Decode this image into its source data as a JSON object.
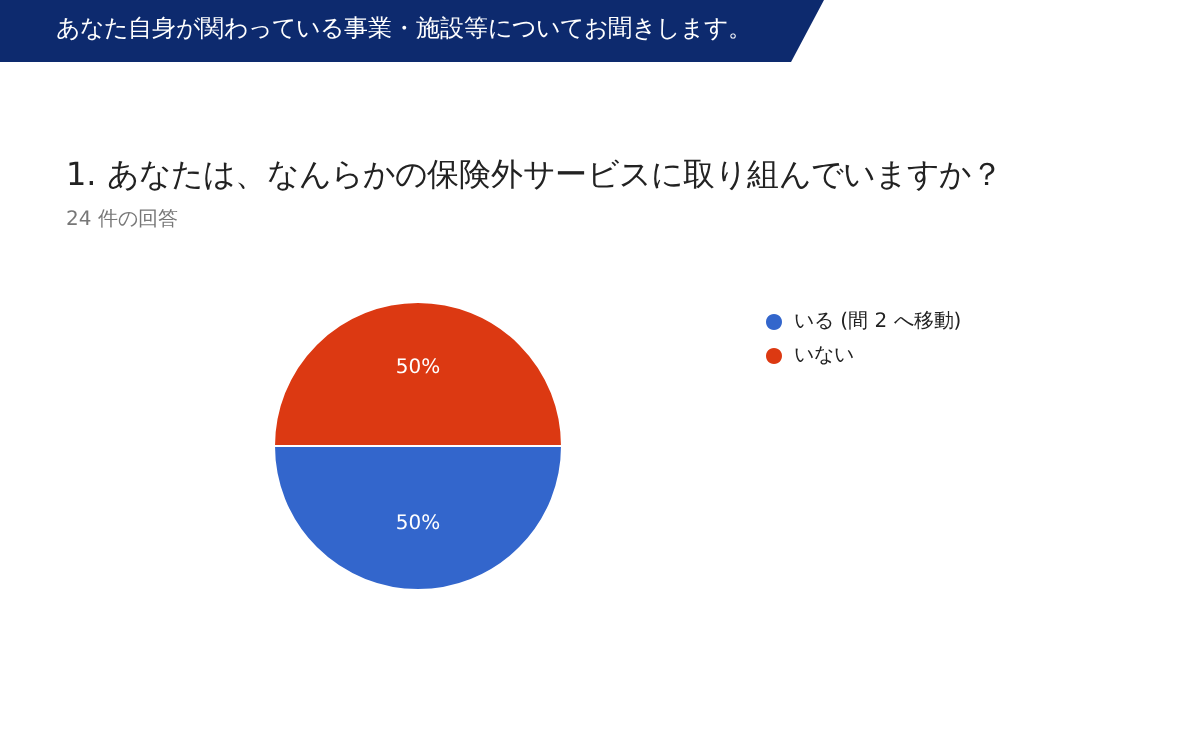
{
  "chart_data": {
    "type": "pie",
    "title": "1. あなたは、なんらかの保険外サービスに取り組んでいますか？",
    "subtitle": "24 件の回答",
    "annotations": [
      "あなた自身が関わっている事業・施設等についてお聞きします。"
    ],
    "categories": [
      "いる (間 2 へ移動)",
      "いない"
    ],
    "values": [
      50,
      50
    ],
    "colors": [
      "#3366cc",
      "#dc3912"
    ],
    "value_labels": [
      "50%",
      "50%"
    ],
    "legend": "right"
  }
}
